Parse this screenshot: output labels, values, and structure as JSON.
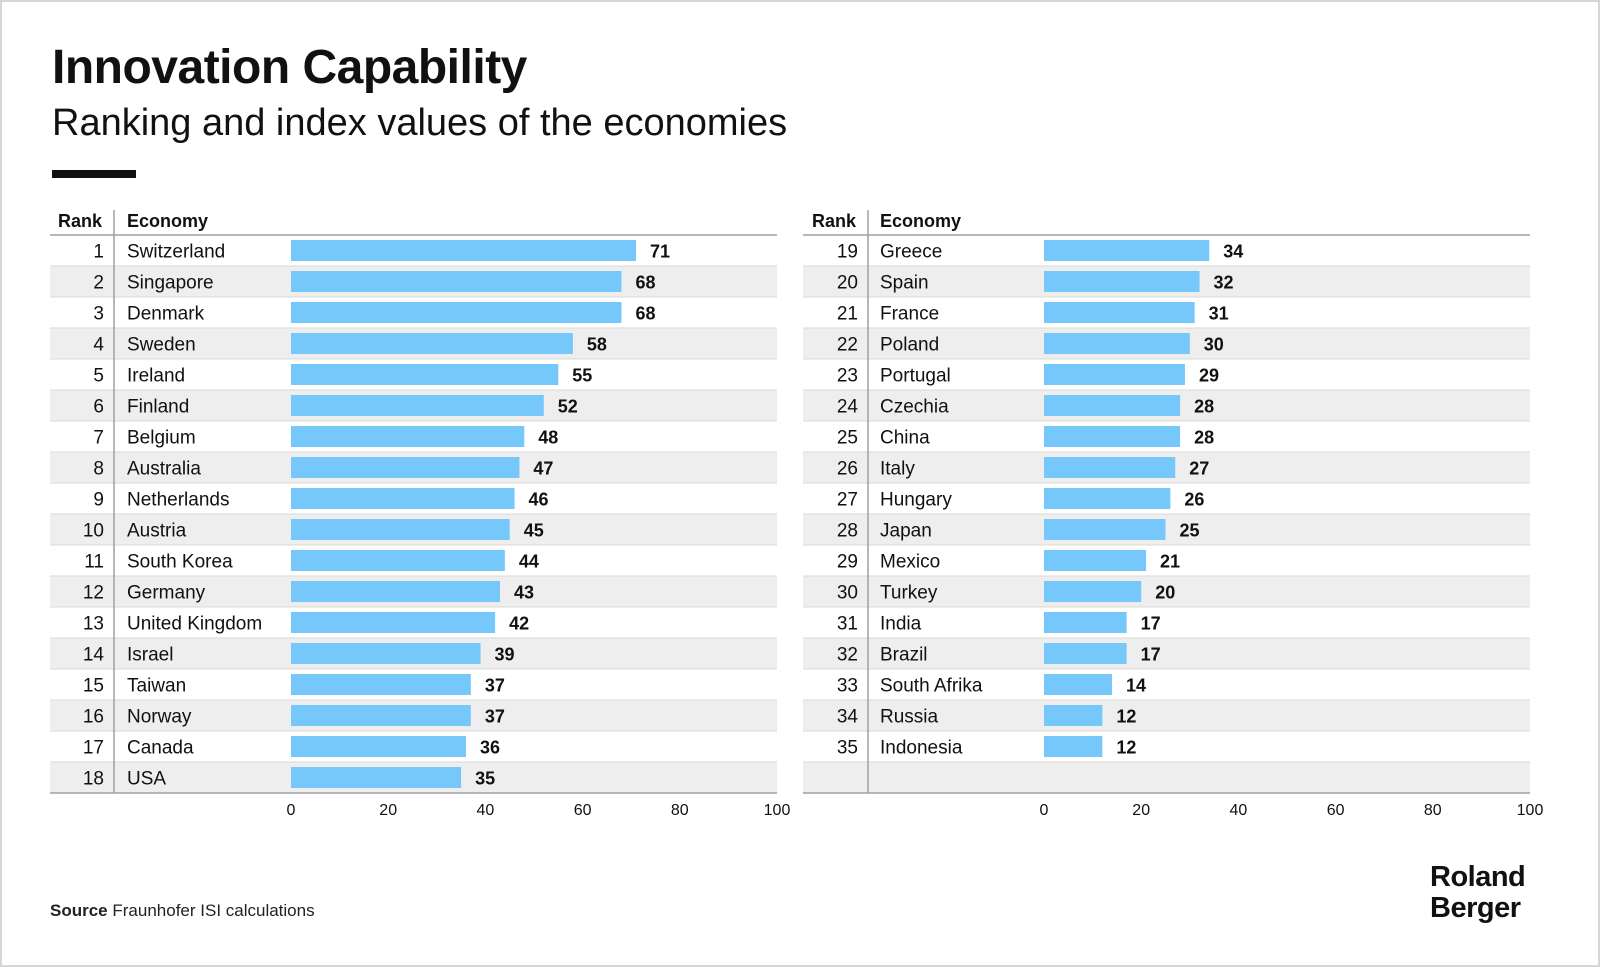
{
  "title": "Innovation Capability",
  "subtitle": "Ranking and index values of the economies",
  "source_label": "Source",
  "source_text": "Fraunhofer ISI calculations",
  "logo_line1": "Roland",
  "logo_line2": "Berger",
  "colors": {
    "bar": "#76c8fa",
    "stripe": "#eeeeee",
    "text": "#111111"
  },
  "chart_data": {
    "type": "bar",
    "orientation": "horizontal",
    "title": "Innovation Capability",
    "subtitle": "Ranking and index values of the economies",
    "xlim": [
      0,
      100
    ],
    "xticks": [
      0,
      20,
      40,
      60,
      80,
      100
    ],
    "columns": [
      "Rank",
      "Economy"
    ],
    "panels": [
      {
        "rows": [
          {
            "rank": "1",
            "economy": "Switzerland",
            "value": 71
          },
          {
            "rank": "2",
            "economy": "Singapore",
            "value": 68
          },
          {
            "rank": "3",
            "economy": "Denmark",
            "value": 68
          },
          {
            "rank": "4",
            "economy": "Sweden",
            "value": 58
          },
          {
            "rank": "5",
            "economy": "Ireland",
            "value": 55
          },
          {
            "rank": "6",
            "economy": "Finland",
            "value": 52
          },
          {
            "rank": "7",
            "economy": "Belgium",
            "value": 48
          },
          {
            "rank": "8",
            "economy": "Australia",
            "value": 47
          },
          {
            "rank": "9",
            "economy": "Netherlands",
            "value": 46
          },
          {
            "rank": "10",
            "economy": "Austria",
            "value": 45
          },
          {
            "rank": "11",
            "economy": "South Korea",
            "value": 44
          },
          {
            "rank": "12",
            "economy": "Germany",
            "value": 43
          },
          {
            "rank": "13",
            "economy": "United Kingdom",
            "value": 42
          },
          {
            "rank": "14",
            "economy": "Israel",
            "value": 39
          },
          {
            "rank": "15",
            "economy": "Taiwan",
            "value": 37
          },
          {
            "rank": "16",
            "economy": "Norway",
            "value": 37
          },
          {
            "rank": "17",
            "economy": "Canada",
            "value": 36
          },
          {
            "rank": "18",
            "economy": "USA",
            "value": 35
          }
        ]
      },
      {
        "rows": [
          {
            "rank": "19",
            "economy": "Greece",
            "value": 34
          },
          {
            "rank": "20",
            "economy": "Spain",
            "value": 32
          },
          {
            "rank": "21",
            "economy": "France",
            "value": 31
          },
          {
            "rank": "22",
            "economy": "Poland",
            "value": 30
          },
          {
            "rank": "23",
            "economy": "Portugal",
            "value": 29
          },
          {
            "rank": "24",
            "economy": "Czechia",
            "value": 28
          },
          {
            "rank": "25",
            "economy": "China",
            "value": 28
          },
          {
            "rank": "26",
            "economy": "Italy",
            "value": 27
          },
          {
            "rank": "27",
            "economy": "Hungary",
            "value": 26
          },
          {
            "rank": "28",
            "economy": "Japan",
            "value": 25
          },
          {
            "rank": "29",
            "economy": "Mexico",
            "value": 21
          },
          {
            "rank": "30",
            "economy": "Turkey",
            "value": 20
          },
          {
            "rank": "31",
            "economy": "India",
            "value": 17
          },
          {
            "rank": "32",
            "economy": "Brazil",
            "value": 17
          },
          {
            "rank": "33",
            "economy": "South Afrika",
            "value": 14
          },
          {
            "rank": "34",
            "economy": "Russia",
            "value": 12
          },
          {
            "rank": "35",
            "economy": "Indonesia",
            "value": 12
          }
        ]
      }
    ]
  }
}
